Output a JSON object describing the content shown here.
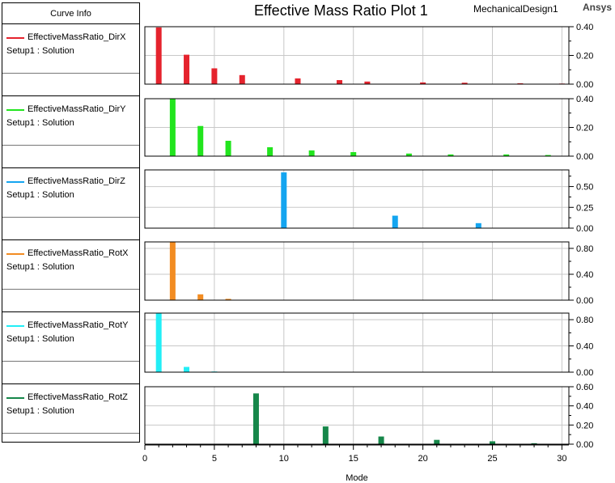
{
  "curve_info_header": "Curve Info",
  "title": "Effective Mass Ratio Plot 1",
  "design_name": "MechanicalDesign1",
  "brand": "Ansys",
  "chart_data": {
    "type": "bar",
    "xlabel": "Mode",
    "xlim": [
      0,
      30.5
    ],
    "xticks": [
      "0",
      "5",
      "10",
      "15",
      "20",
      "25",
      "30"
    ],
    "grid": true,
    "legend_position": "left",
    "series": [
      {
        "name": "EffectiveMassRatio_DirX",
        "subtitle": "Setup1 : Solution",
        "color": "#e5232d",
        "ylim": [
          0,
          0.4
        ],
        "yticks": [
          "0.00",
          "0.20",
          "0.40"
        ],
        "x": [
          1,
          3,
          5,
          7,
          11,
          14,
          16,
          20,
          23,
          27,
          30
        ],
        "values": [
          0.395,
          0.205,
          0.11,
          0.063,
          0.04,
          0.028,
          0.018,
          0.012,
          0.01,
          0.006,
          0.004
        ]
      },
      {
        "name": "EffectiveMassRatio_DirY",
        "subtitle": "Setup1 : Solution",
        "color": "#22e51e",
        "ylim": [
          0,
          0.4
        ],
        "yticks": [
          "0.00",
          "0.20",
          "0.40"
        ],
        "x": [
          2,
          4,
          6,
          9,
          12,
          15,
          19,
          22,
          26,
          29
        ],
        "values": [
          0.4,
          0.21,
          0.107,
          0.062,
          0.04,
          0.028,
          0.018,
          0.012,
          0.012,
          0.008
        ]
      },
      {
        "name": "EffectiveMassRatio_DirZ",
        "subtitle": "Setup1 : Solution",
        "color": "#14a5f0",
        "ylim": [
          0,
          0.7
        ],
        "yticks": [
          "0.00",
          "0.25",
          "0.50"
        ],
        "x": [
          10,
          18,
          24
        ],
        "values": [
          0.67,
          0.15,
          0.06
        ]
      },
      {
        "name": "EffectiveMassRatio_RotX",
        "subtitle": "Setup1 : Solution",
        "color": "#f28c22",
        "ylim": [
          0,
          0.9
        ],
        "yticks": [
          "0.00",
          "0.40",
          "0.80"
        ],
        "x": [
          2,
          4,
          6
        ],
        "values": [
          0.9,
          0.09,
          0.02
        ]
      },
      {
        "name": "EffectiveMassRatio_RotY",
        "subtitle": "Setup1 : Solution",
        "color": "#22eef6",
        "ylim": [
          0,
          0.9
        ],
        "yticks": [
          "0.00",
          "0.40",
          "0.80"
        ],
        "x": [
          1,
          3,
          5
        ],
        "values": [
          0.9,
          0.08,
          0.01
        ]
      },
      {
        "name": "EffectiveMassRatio_RotZ",
        "subtitle": "Setup1 : Solution",
        "color": "#16874a",
        "ylim": [
          0,
          0.6
        ],
        "yticks": [
          "0.00",
          "0.20",
          "0.40",
          "0.60"
        ],
        "x": [
          8,
          13,
          17,
          21,
          25,
          28
        ],
        "values": [
          0.53,
          0.185,
          0.08,
          0.045,
          0.03,
          0.01
        ]
      }
    ]
  }
}
